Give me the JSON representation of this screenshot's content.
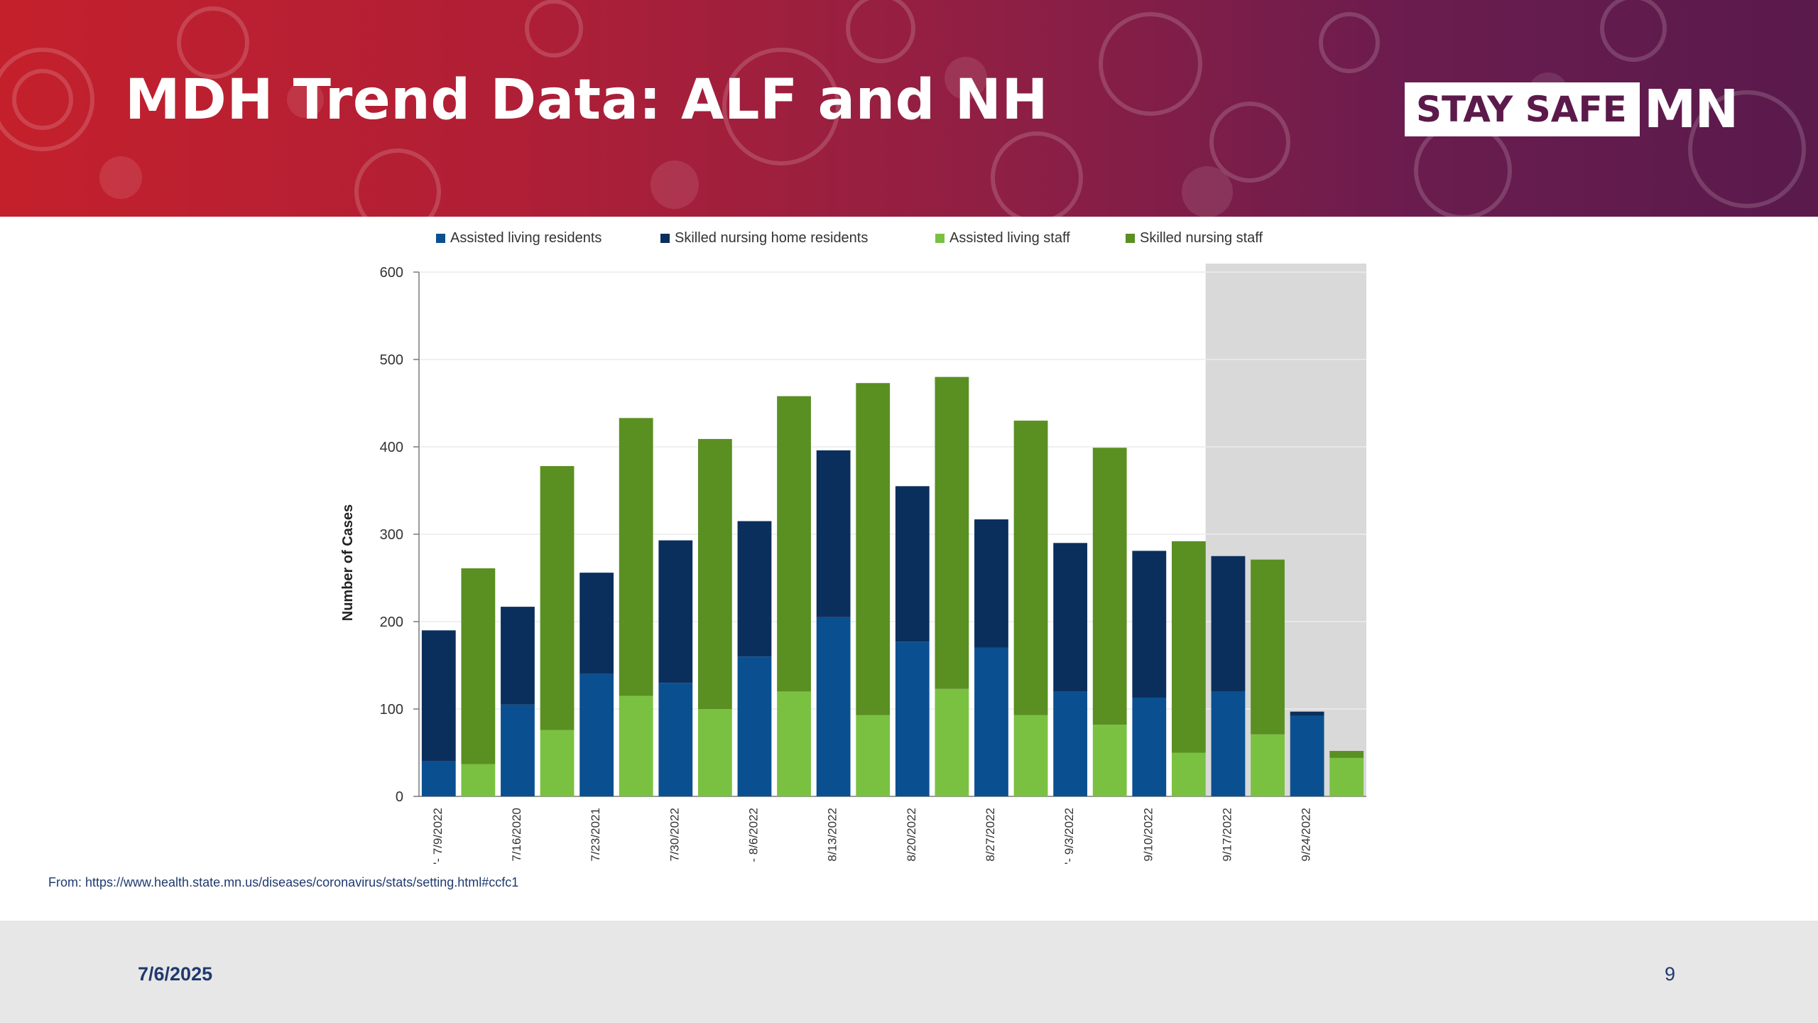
{
  "slide": {
    "title": "MDH Trend Data: ALF and NH",
    "logo_text": "STAY SAFE",
    "logo_mn": "MN",
    "source": "From: https://www.health.state.mn.us/diseases/coronavirus/stats/setting.html#ccfc1",
    "date": "7/6/2025",
    "page_number": "9"
  },
  "colors": {
    "banner_start": "#c4202c",
    "banner_end": "#5a1a4c",
    "assisted_living_residents": "#0a5091",
    "skilled_nursing_home_residents": "#0b2f5c",
    "assisted_living_staff": "#7ac142",
    "skilled_nursing_staff": "#5a8f22",
    "incomplete_shade": "#d9d9d9",
    "footer_text": "#1f3a6e"
  },
  "chart_data": {
    "type": "bar",
    "stacked": true,
    "ylabel": "Number of Cases",
    "ylim": [
      0,
      600
    ],
    "yticks": [
      0,
      100,
      200,
      300,
      400,
      500,
      600
    ],
    "legend_position": "top",
    "grid": true,
    "x": [
      "7/9/2022",
      "7/16/2020",
      "7/23/2021",
      "7/30/2022",
      "8/6/2022",
      "8/13/2022",
      "8/20/2022",
      "8/27/2022",
      "9/3/2022",
      "9/10/2022",
      "9/17/2022",
      "9/24/2022"
    ],
    "x_tick_labels": [
      "'- 7/9/2022",
      "7/16/2020",
      "7/23/2021",
      "7/30/2022",
      "- 8/6/2022",
      "8/13/2022",
      "8/20/2022",
      "8/27/2022",
      "'- 9/3/2022",
      "9/10/2022",
      "9/17/2022",
      "9/24/2022"
    ],
    "shaded_from_index": 10,
    "groups": [
      {
        "name": "residents",
        "series": [
          {
            "name": "Assisted living residents",
            "values": [
              40,
              105,
              140,
              130,
              160,
              205,
              177,
              170,
              120,
              113,
              120,
              92
            ]
          },
          {
            "name": "Skilled nursing home residents",
            "values": [
              150,
              112,
              116,
              163,
              155,
              191,
              178,
              147,
              170,
              168,
              155,
              5
            ]
          }
        ]
      },
      {
        "name": "staff",
        "series": [
          {
            "name": "Assisted living staff",
            "values": [
              37,
              76,
              115,
              100,
              120,
              93,
              123,
              93,
              82,
              50,
              71,
              44
            ]
          },
          {
            "name": "Skilled nursing staff",
            "values": [
              224,
              302,
              318,
              309,
              338,
              380,
              357,
              337,
              317,
              242,
              200,
              8
            ]
          }
        ]
      }
    ],
    "legend": [
      "Assisted living residents",
      "Skilled nursing home residents",
      "Assisted living staff",
      "Skilled nursing staff"
    ]
  }
}
